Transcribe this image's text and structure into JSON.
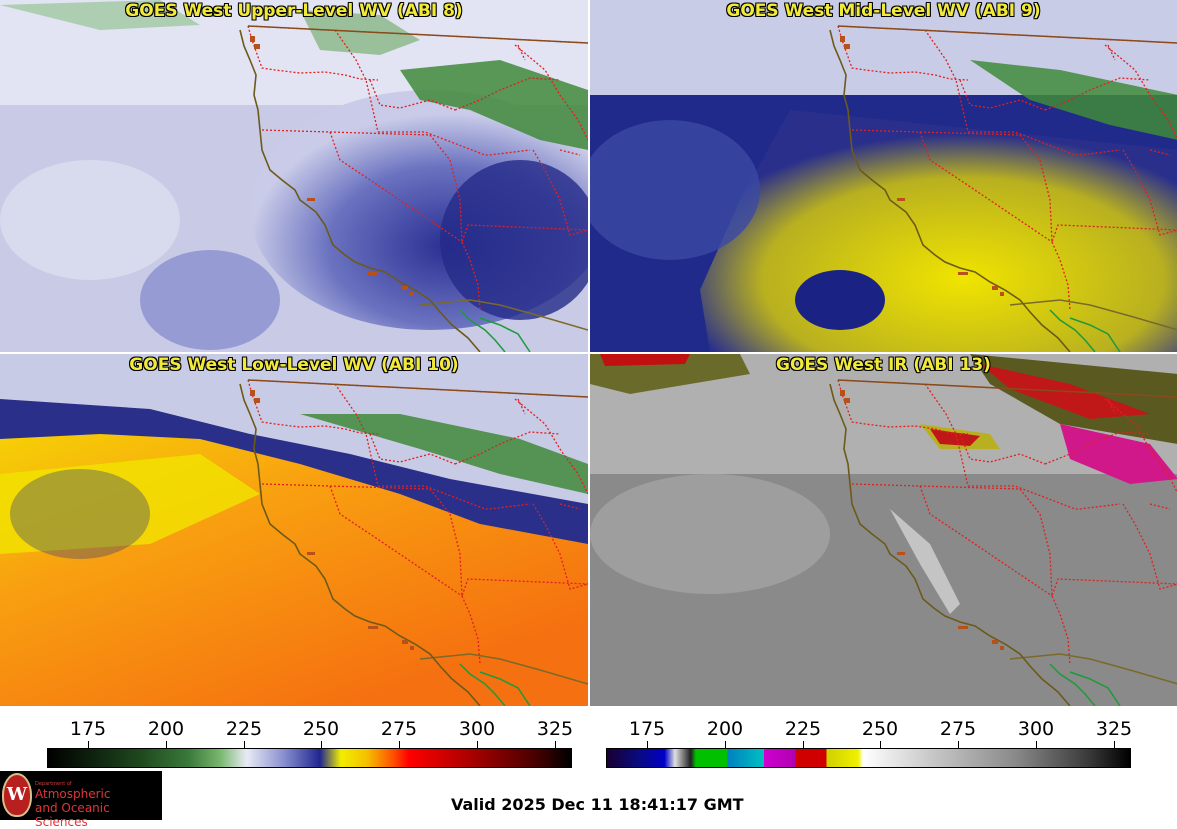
{
  "panels": {
    "upper": {
      "title": "GOES West Upper-Level WV (ABI 8)"
    },
    "mid": {
      "title": "GOES West Mid-Level WV (ABI 9)"
    },
    "low": {
      "title": "GOES West Low-Level WV (ABI 10)"
    },
    "ir": {
      "title": "GOES West IR (ABI 13)"
    }
  },
  "colorbars": {
    "water_vapor": {
      "ticks": [
        "175",
        "200",
        "225",
        "250",
        "275",
        "300",
        "325"
      ]
    },
    "infrared": {
      "ticks": [
        "175",
        "200",
        "225",
        "250",
        "275",
        "300",
        "325"
      ]
    }
  },
  "logo": {
    "crest_letter": "W",
    "department": "Department of",
    "line1": "Atmospheric",
    "line2": "and Oceanic Sciences"
  },
  "footer": {
    "valid_time": "Valid 2025 Dec 11 18:41:17 GMT"
  },
  "colors": {
    "title_text": "#f2ea3a",
    "state_borders": "#e02020",
    "coastline": "#6b5a1a",
    "mexico_border": "#1e9a3a"
  }
}
